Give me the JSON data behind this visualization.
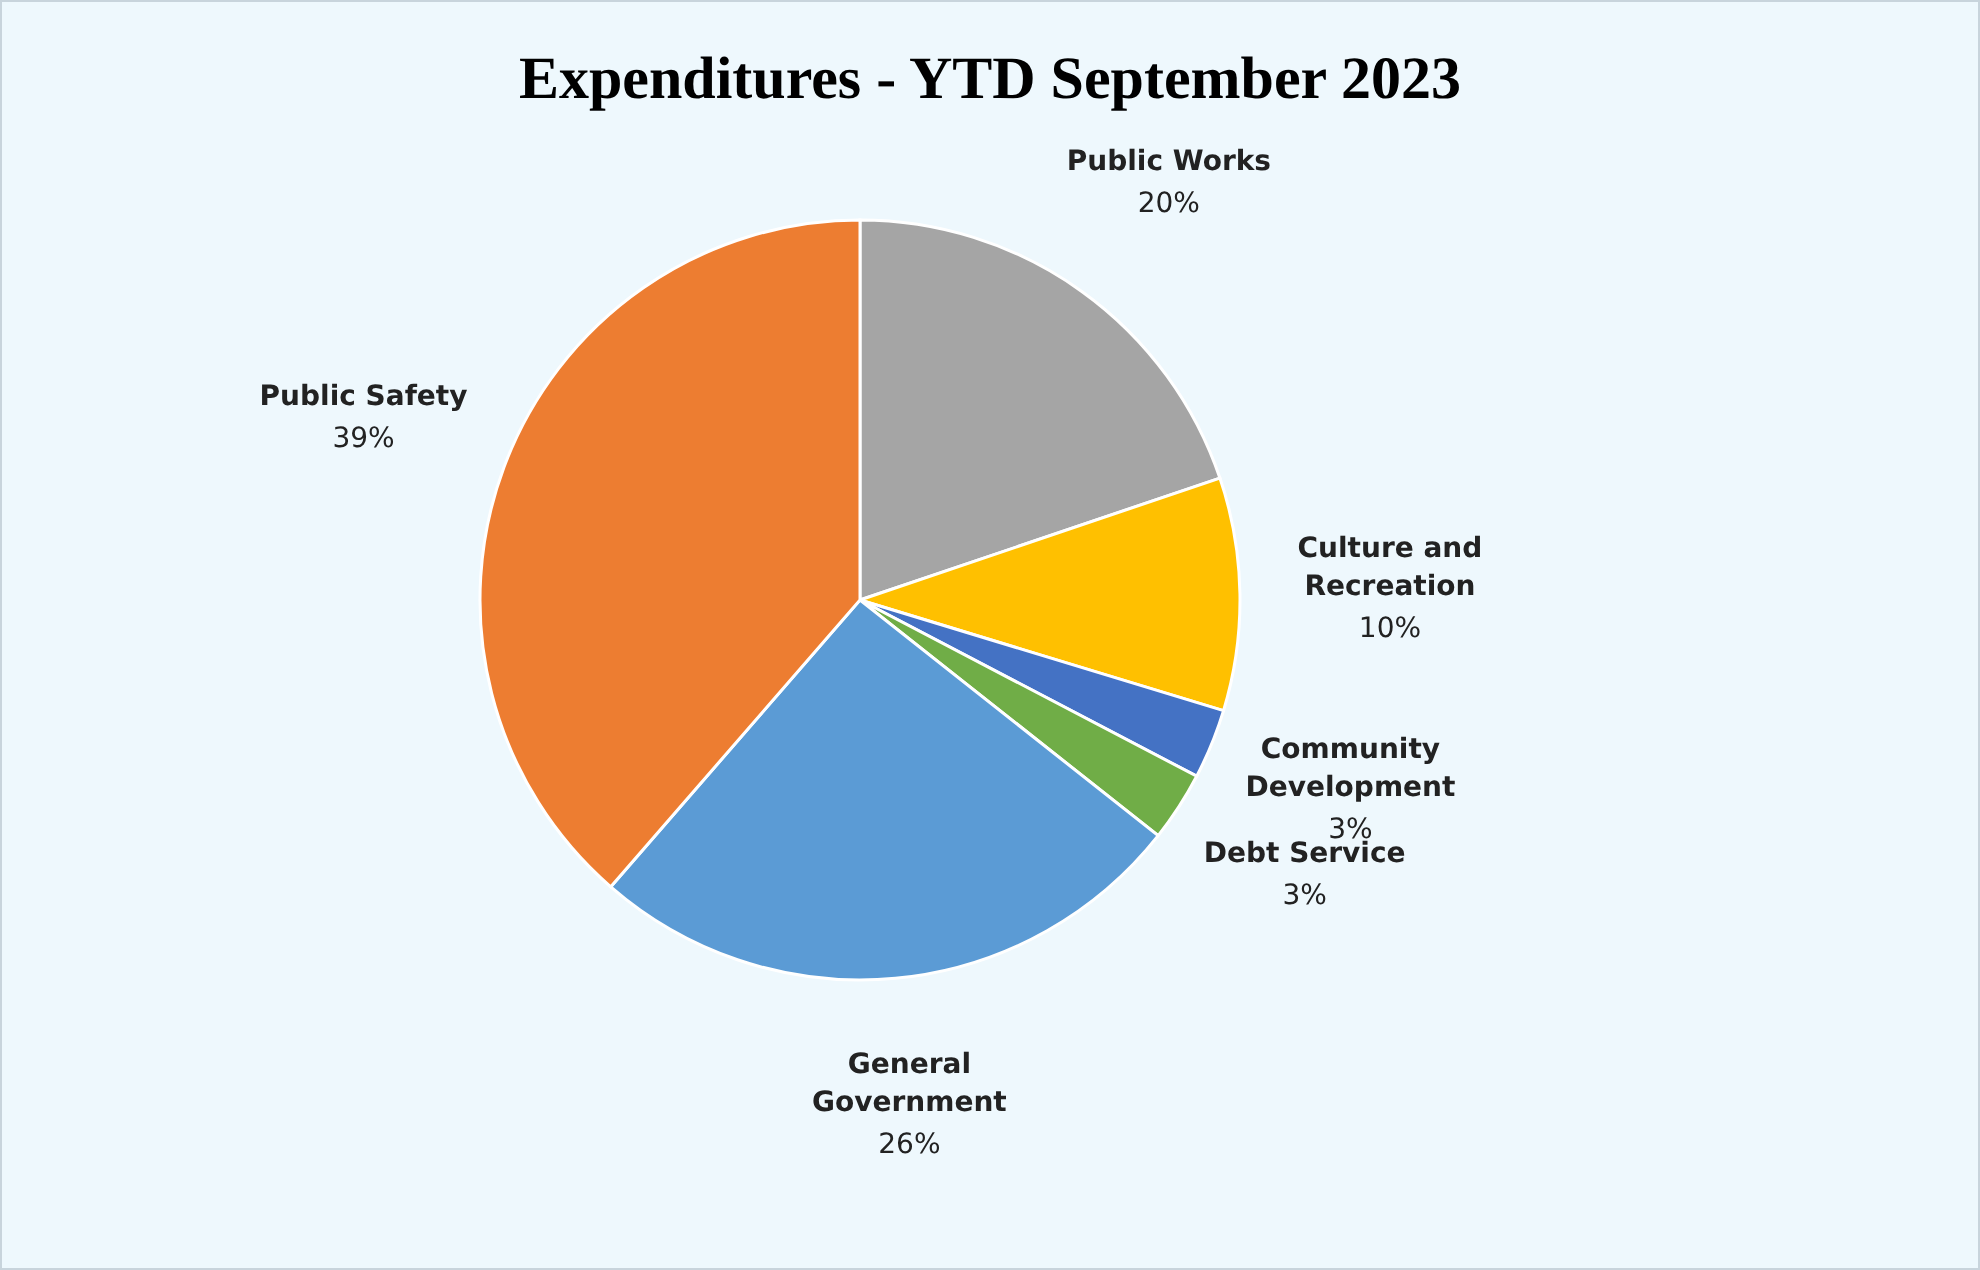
{
  "chart_data": {
    "type": "pie",
    "title": "Expenditures - YTD September 2023",
    "categories": [
      "Public Works",
      "Culture and Recreation",
      "Community Development",
      "Debt Service",
      "General Government",
      "Public Safety"
    ],
    "values": [
      20,
      10,
      3,
      3,
      26,
      39
    ],
    "value_labels": [
      "20%",
      "10%",
      "3%",
      "3%",
      "26%",
      "39%"
    ],
    "colors": [
      "#a5a5a5",
      "#ffc000",
      "#4472c4",
      "#70ad47",
      "#5b9bd5",
      "#ed7d31"
    ],
    "legend": false
  }
}
